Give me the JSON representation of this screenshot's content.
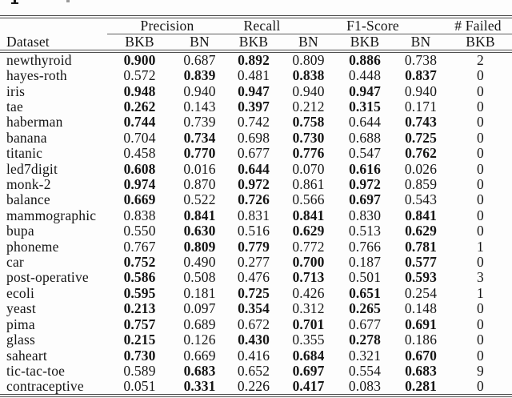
{
  "table": {
    "dataset_header": "Dataset",
    "groups": [
      {
        "label": "Precision",
        "cols": [
          "BKB",
          "BN"
        ]
      },
      {
        "label": "Recall",
        "cols": [
          "BKB",
          "BN"
        ]
      },
      {
        "label": "F1-Score",
        "cols": [
          "BKB",
          "BN"
        ]
      },
      {
        "label": "# Failed",
        "cols": [
          "BKB"
        ]
      }
    ],
    "sub_headers": [
      "BKB",
      "BN",
      "BKB",
      "BN",
      "BKB",
      "BN",
      "BKB"
    ],
    "rows": [
      {
        "dataset": "newthyroid",
        "values": [
          "0.900",
          "0.687",
          "0.892",
          "0.809",
          "0.886",
          "0.738",
          "2"
        ],
        "bold": [
          0,
          2,
          4
        ]
      },
      {
        "dataset": "hayes-roth",
        "values": [
          "0.572",
          "0.839",
          "0.481",
          "0.838",
          "0.448",
          "0.837",
          "0"
        ],
        "bold": [
          1,
          3,
          5
        ]
      },
      {
        "dataset": "iris",
        "values": [
          "0.948",
          "0.940",
          "0.947",
          "0.940",
          "0.947",
          "0.940",
          "0"
        ],
        "bold": [
          0,
          2,
          4
        ]
      },
      {
        "dataset": "tae",
        "values": [
          "0.262",
          "0.143",
          "0.397",
          "0.212",
          "0.315",
          "0.171",
          "0"
        ],
        "bold": [
          0,
          2,
          4
        ]
      },
      {
        "dataset": "haberman",
        "values": [
          "0.744",
          "0.739",
          "0.742",
          "0.758",
          "0.644",
          "0.743",
          "0"
        ],
        "bold": [
          0,
          3,
          5
        ]
      },
      {
        "dataset": "banana",
        "values": [
          "0.704",
          "0.734",
          "0.698",
          "0.730",
          "0.688",
          "0.725",
          "0"
        ],
        "bold": [
          1,
          3,
          5
        ]
      },
      {
        "dataset": "titanic",
        "values": [
          "0.458",
          "0.770",
          "0.677",
          "0.776",
          "0.547",
          "0.762",
          "0"
        ],
        "bold": [
          1,
          3,
          5
        ]
      },
      {
        "dataset": "led7digit",
        "values": [
          "0.608",
          "0.016",
          "0.644",
          "0.070",
          "0.616",
          "0.026",
          "0"
        ],
        "bold": [
          0,
          2,
          4
        ]
      },
      {
        "dataset": "monk-2",
        "values": [
          "0.974",
          "0.870",
          "0.972",
          "0.861",
          "0.972",
          "0.859",
          "0"
        ],
        "bold": [
          0,
          2,
          4
        ]
      },
      {
        "dataset": "balance",
        "values": [
          "0.669",
          "0.522",
          "0.726",
          "0.566",
          "0.697",
          "0.543",
          "0"
        ],
        "bold": [
          0,
          2,
          4
        ]
      },
      {
        "dataset": "mammographic",
        "values": [
          "0.838",
          "0.841",
          "0.831",
          "0.841",
          "0.830",
          "0.841",
          "0"
        ],
        "bold": [
          1,
          3,
          5
        ]
      },
      {
        "dataset": "bupa",
        "values": [
          "0.550",
          "0.630",
          "0.516",
          "0.629",
          "0.513",
          "0.629",
          "0"
        ],
        "bold": [
          1,
          3,
          5
        ]
      },
      {
        "dataset": "phoneme",
        "values": [
          "0.767",
          "0.809",
          "0.779",
          "0.772",
          "0.766",
          "0.781",
          "1"
        ],
        "bold": [
          1,
          2,
          5
        ]
      },
      {
        "dataset": "car",
        "values": [
          "0.752",
          "0.490",
          "0.277",
          "0.700",
          "0.187",
          "0.577",
          "0"
        ],
        "bold": [
          0,
          3,
          5
        ]
      },
      {
        "dataset": "post-operative",
        "values": [
          "0.586",
          "0.508",
          "0.476",
          "0.713",
          "0.501",
          "0.593",
          "3"
        ],
        "bold": [
          0,
          3,
          5
        ]
      },
      {
        "dataset": "ecoli",
        "values": [
          "0.595",
          "0.181",
          "0.725",
          "0.426",
          "0.651",
          "0.254",
          "1"
        ],
        "bold": [
          0,
          2,
          4
        ]
      },
      {
        "dataset": "yeast",
        "values": [
          "0.213",
          "0.097",
          "0.354",
          "0.312",
          "0.265",
          "0.148",
          "0"
        ],
        "bold": [
          0,
          2,
          4
        ]
      },
      {
        "dataset": "pima",
        "values": [
          "0.757",
          "0.689",
          "0.672",
          "0.701",
          "0.677",
          "0.691",
          "0"
        ],
        "bold": [
          0,
          3,
          5
        ]
      },
      {
        "dataset": "glass",
        "values": [
          "0.215",
          "0.126",
          "0.430",
          "0.355",
          "0.278",
          "0.186",
          "0"
        ],
        "bold": [
          0,
          2,
          4
        ]
      },
      {
        "dataset": "saheart",
        "values": [
          "0.730",
          "0.669",
          "0.416",
          "0.684",
          "0.321",
          "0.670",
          "0"
        ],
        "bold": [
          0,
          3,
          5
        ]
      },
      {
        "dataset": "tic-tac-toe",
        "values": [
          "0.589",
          "0.683",
          "0.652",
          "0.697",
          "0.554",
          "0.683",
          "9"
        ],
        "bold": [
          1,
          3,
          5
        ]
      },
      {
        "dataset": "contraceptive",
        "values": [
          "0.051",
          "0.331",
          "0.226",
          "0.417",
          "0.083",
          "0.281",
          "0"
        ],
        "bold": [
          1,
          3,
          5
        ]
      }
    ]
  }
}
